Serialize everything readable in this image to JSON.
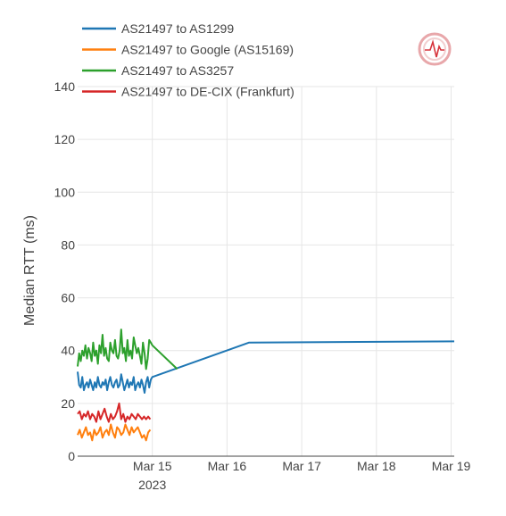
{
  "chart_data": {
    "type": "line",
    "title": "",
    "xlabel": "",
    "ylabel": "Median RTT (ms)",
    "ylim": [
      0,
      140
    ],
    "xlim": [
      "2023-03-14T00:00",
      "2023-03-19T01:00"
    ],
    "y_ticks": [
      0,
      20,
      40,
      60,
      80,
      100,
      120,
      140
    ],
    "x_ticks": [
      {
        "value": "2023-03-15T00:00",
        "label": "Mar 15",
        "sublabel": "2023"
      },
      {
        "value": "2023-03-16T00:00",
        "label": "Mar 16",
        "sublabel": ""
      },
      {
        "value": "2023-03-17T00:00",
        "label": "Mar 17",
        "sublabel": ""
      },
      {
        "value": "2023-03-18T00:00",
        "label": "Mar 18",
        "sublabel": ""
      },
      {
        "value": "2023-03-19T00:00",
        "label": "Mar 19",
        "sublabel": ""
      }
    ],
    "grid": true,
    "legend_position": "top-left",
    "series": [
      {
        "name": "AS21497 to AS1299",
        "color": "#1f77b4",
        "x": [
          "2023-03-14T00:00",
          "2023-03-14T00:30",
          "2023-03-14T01:00",
          "2023-03-14T01:30",
          "2023-03-14T02:00",
          "2023-03-14T02:30",
          "2023-03-14T03:00",
          "2023-03-14T03:30",
          "2023-03-14T04:00",
          "2023-03-14T04:30",
          "2023-03-14T05:00",
          "2023-03-14T05:30",
          "2023-03-14T06:00",
          "2023-03-14T06:30",
          "2023-03-14T07:00",
          "2023-03-14T07:30",
          "2023-03-14T08:00",
          "2023-03-14T08:30",
          "2023-03-14T09:00",
          "2023-03-14T09:30",
          "2023-03-14T10:00",
          "2023-03-14T10:30",
          "2023-03-14T11:00",
          "2023-03-14T11:30",
          "2023-03-14T12:00",
          "2023-03-14T12:30",
          "2023-03-14T13:00",
          "2023-03-14T13:30",
          "2023-03-14T14:00",
          "2023-03-14T14:30",
          "2023-03-14T15:00",
          "2023-03-14T15:30",
          "2023-03-14T16:00",
          "2023-03-14T16:30",
          "2023-03-14T17:00",
          "2023-03-14T17:30",
          "2023-03-14T18:00",
          "2023-03-14T18:30",
          "2023-03-14T19:00",
          "2023-03-14T19:30",
          "2023-03-14T20:00",
          "2023-03-14T20:30",
          "2023-03-14T21:00",
          "2023-03-14T21:30",
          "2023-03-14T22:00",
          "2023-03-14T22:30",
          "2023-03-14T23:00",
          "2023-03-14T23:30",
          "2023-03-15T00:00",
          "2023-03-16T07:00",
          "2023-03-19T01:00"
        ],
        "y": [
          32,
          27,
          26,
          30,
          25,
          27,
          28,
          26,
          29,
          27,
          25,
          28,
          26,
          30,
          27,
          26,
          28,
          27,
          29,
          25,
          28,
          30,
          27,
          26,
          28,
          29,
          26,
          27,
          31,
          28,
          25,
          27,
          29,
          26,
          28,
          27,
          30,
          25,
          27,
          28,
          26,
          29,
          27,
          24,
          28,
          30,
          26,
          29,
          30,
          43,
          43.5
        ]
      },
      {
        "name": "AS21497 to Google (AS15169)",
        "color": "#ff7f0e",
        "x": [
          "2023-03-14T00:00",
          "2023-03-14T00:40",
          "2023-03-14T01:20",
          "2023-03-14T02:00",
          "2023-03-14T02:40",
          "2023-03-14T03:20",
          "2023-03-14T04:00",
          "2023-03-14T04:40",
          "2023-03-14T05:20",
          "2023-03-14T06:00",
          "2023-03-14T06:40",
          "2023-03-14T07:20",
          "2023-03-14T08:00",
          "2023-03-14T08:40",
          "2023-03-14T09:20",
          "2023-03-14T10:00",
          "2023-03-14T10:40",
          "2023-03-14T11:20",
          "2023-03-14T12:00",
          "2023-03-14T12:40",
          "2023-03-14T13:20",
          "2023-03-14T14:00",
          "2023-03-14T14:40",
          "2023-03-14T15:20",
          "2023-03-14T16:00",
          "2023-03-14T16:40",
          "2023-03-14T17:20",
          "2023-03-14T18:00",
          "2023-03-14T18:40",
          "2023-03-14T19:20",
          "2023-03-14T20:00",
          "2023-03-14T20:40",
          "2023-03-14T21:20",
          "2023-03-14T22:00",
          "2023-03-14T22:40",
          "2023-03-14T23:20"
        ],
        "y": [
          8,
          10,
          7,
          9,
          11,
          8,
          9,
          6,
          10,
          8,
          9,
          11,
          7,
          9,
          10,
          8,
          12,
          9,
          7,
          11,
          10,
          8,
          9,
          12,
          10,
          8,
          11,
          9,
          10,
          11,
          9,
          7,
          8,
          6,
          9,
          10
        ]
      },
      {
        "name": "AS21497 to AS3257",
        "color": "#2ca02c",
        "x": [
          "2023-03-14T00:00",
          "2023-03-14T00:30",
          "2023-03-14T01:00",
          "2023-03-14T01:30",
          "2023-03-14T02:00",
          "2023-03-14T02:30",
          "2023-03-14T03:00",
          "2023-03-14T03:30",
          "2023-03-14T04:00",
          "2023-03-14T04:30",
          "2023-03-14T05:00",
          "2023-03-14T05:30",
          "2023-03-14T06:00",
          "2023-03-14T06:30",
          "2023-03-14T07:00",
          "2023-03-14T07:30",
          "2023-03-14T08:00",
          "2023-03-14T08:30",
          "2023-03-14T09:00",
          "2023-03-14T09:30",
          "2023-03-14T10:00",
          "2023-03-14T10:30",
          "2023-03-14T11:00",
          "2023-03-14T11:30",
          "2023-03-14T12:00",
          "2023-03-14T12:30",
          "2023-03-14T13:00",
          "2023-03-14T13:30",
          "2023-03-14T14:00",
          "2023-03-14T14:30",
          "2023-03-14T15:00",
          "2023-03-14T15:30",
          "2023-03-14T16:00",
          "2023-03-14T16:30",
          "2023-03-14T17:00",
          "2023-03-14T17:30",
          "2023-03-14T18:00",
          "2023-03-14T18:30",
          "2023-03-14T19:00",
          "2023-03-14T19:30",
          "2023-03-14T20:00",
          "2023-03-14T20:30",
          "2023-03-14T21:00",
          "2023-03-14T21:30",
          "2023-03-14T22:00",
          "2023-03-14T22:30",
          "2023-03-14T23:00",
          "2023-03-14T23:30",
          "2023-03-15T00:00",
          "2023-03-15T08:00"
        ],
        "y": [
          34,
          39,
          36,
          40,
          38,
          42,
          37,
          41,
          39,
          36,
          43,
          38,
          40,
          35,
          42,
          39,
          46,
          38,
          41,
          37,
          36,
          43,
          40,
          39,
          44,
          38,
          37,
          40,
          48,
          39,
          41,
          36,
          44,
          38,
          40,
          37,
          45,
          42,
          39,
          41,
          38,
          35,
          43,
          39,
          33,
          37,
          44,
          43,
          42,
          33
        ]
      },
      {
        "name": "AS21497 to DE-CIX (Frankfurt)",
        "color": "#d62728",
        "x": [
          "2023-03-14T00:00",
          "2023-03-14T00:40",
          "2023-03-14T01:20",
          "2023-03-14T02:00",
          "2023-03-14T02:40",
          "2023-03-14T03:20",
          "2023-03-14T04:00",
          "2023-03-14T04:40",
          "2023-03-14T05:20",
          "2023-03-14T06:00",
          "2023-03-14T06:40",
          "2023-03-14T07:20",
          "2023-03-14T08:00",
          "2023-03-14T08:40",
          "2023-03-14T09:20",
          "2023-03-14T10:00",
          "2023-03-14T10:40",
          "2023-03-14T11:20",
          "2023-03-14T12:00",
          "2023-03-14T12:40",
          "2023-03-14T13:20",
          "2023-03-14T14:00",
          "2023-03-14T14:40",
          "2023-03-14T15:20",
          "2023-03-14T16:00",
          "2023-03-14T16:40",
          "2023-03-14T17:20",
          "2023-03-14T18:00",
          "2023-03-14T18:40",
          "2023-03-14T19:20",
          "2023-03-14T20:00",
          "2023-03-14T20:40",
          "2023-03-14T21:20",
          "2023-03-14T22:00",
          "2023-03-14T22:40",
          "2023-03-14T23:20"
        ],
        "y": [
          16,
          17,
          14,
          16,
          15,
          17,
          14,
          16,
          15,
          13,
          17,
          14,
          16,
          18,
          15,
          13,
          16,
          14,
          15,
          17,
          20,
          14,
          16,
          13,
          15,
          14,
          16,
          15,
          14,
          16,
          15,
          14,
          15,
          14,
          15,
          14
        ]
      }
    ]
  },
  "logo": {
    "icon": "heartbeat-logo-icon",
    "color": "#d6333b"
  }
}
